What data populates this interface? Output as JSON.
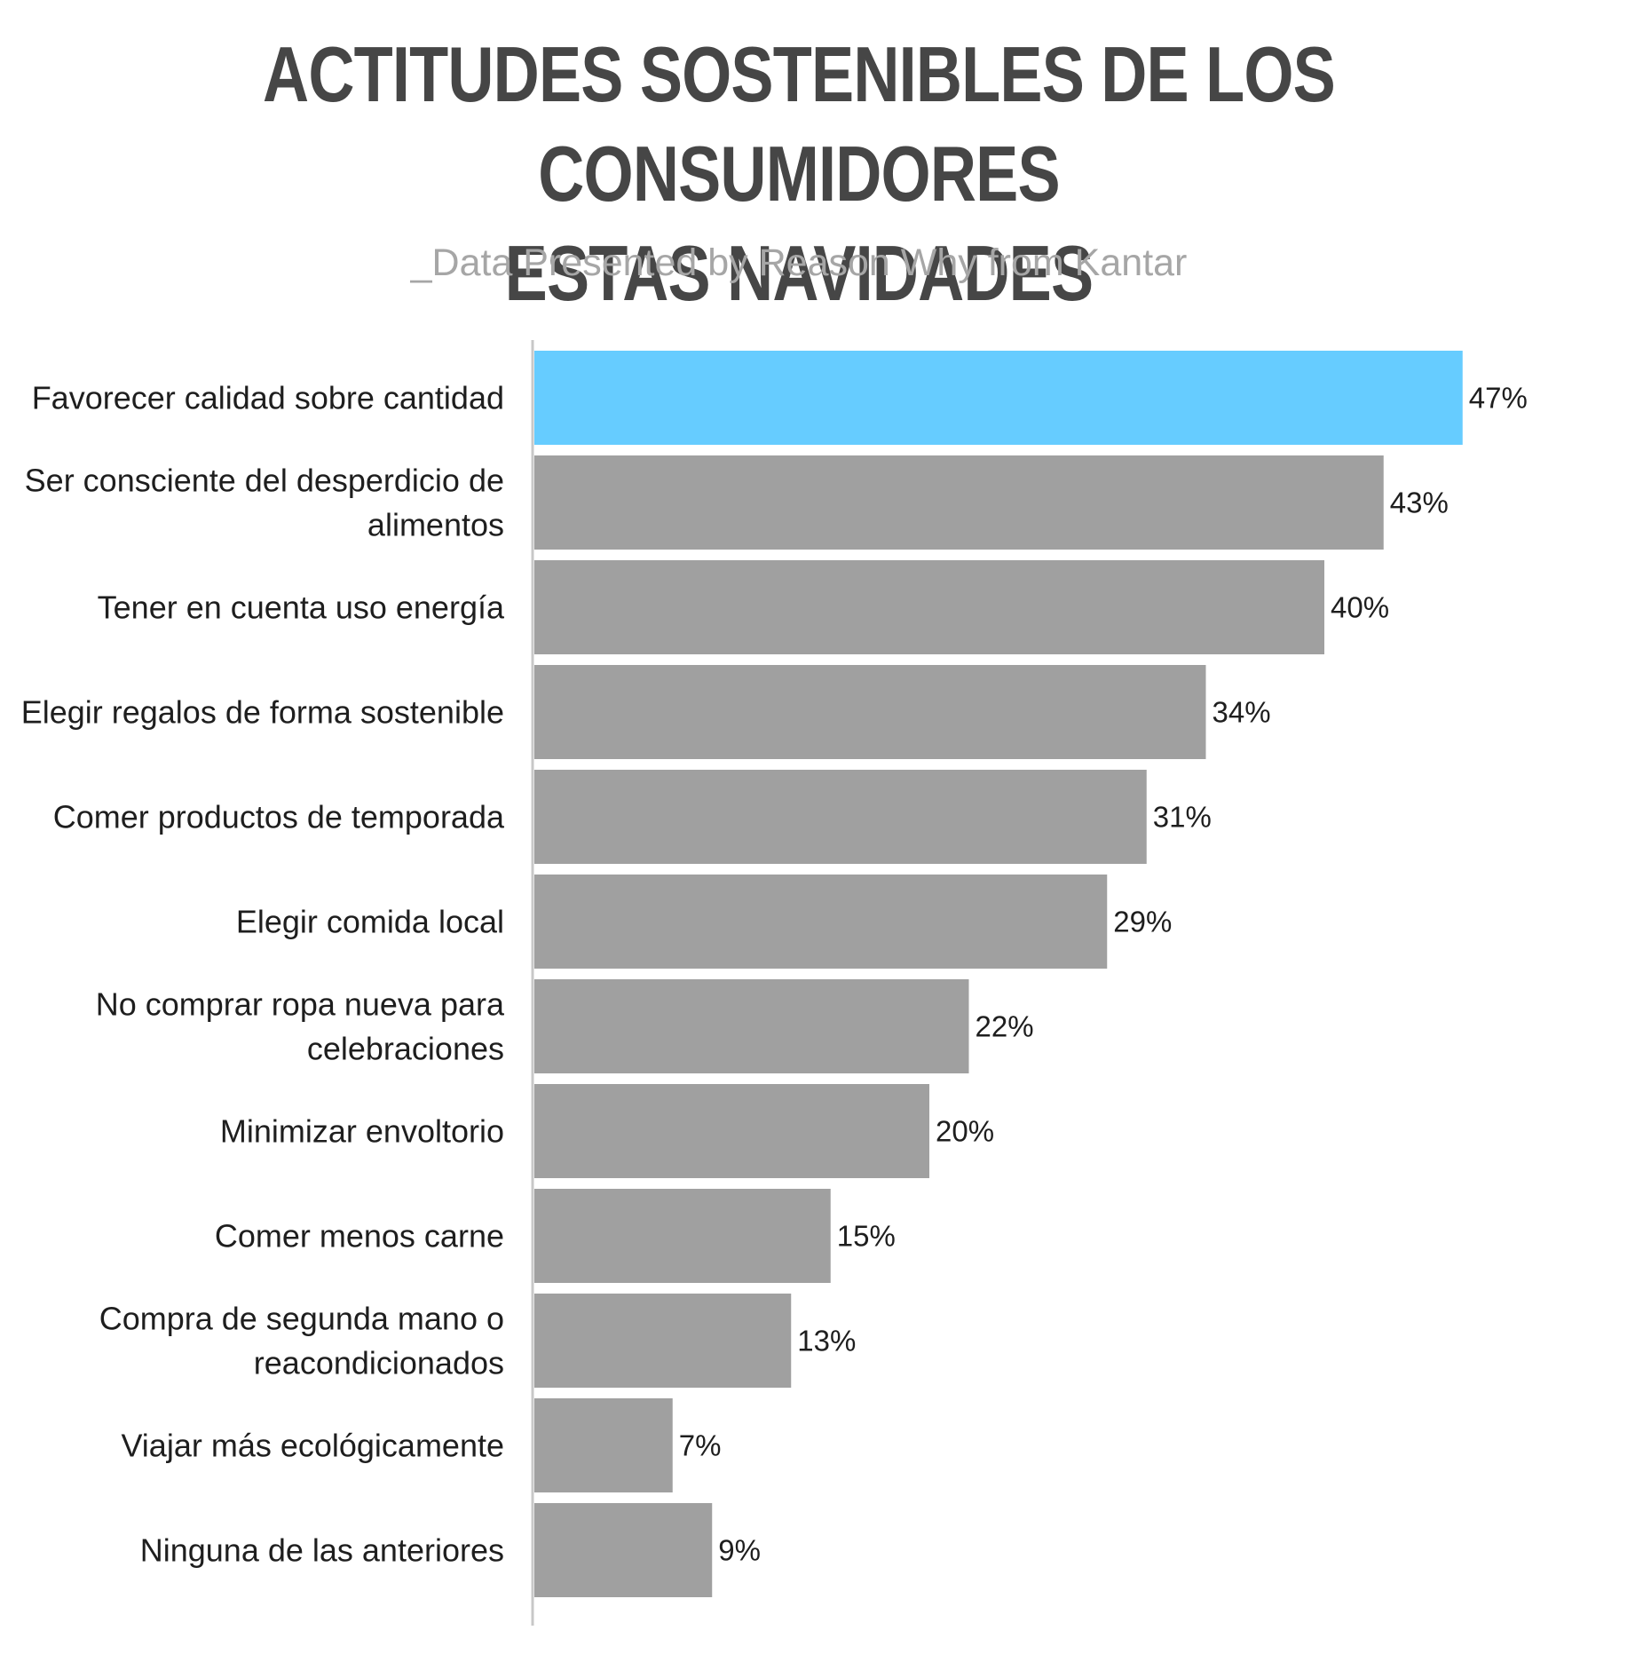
{
  "title_lines": [
    "ACTITUDES SOSTENIBLES DE LOS CONSUMIDORES",
    "ESTAS NAVIDADES"
  ],
  "subtitle": "_Data Presented by Reason Why from Kantar",
  "colors": {
    "highlight": "#66CCFF",
    "bar": "#A0A0A0",
    "axis": "#C8C8C8",
    "text": "#1E1E1E",
    "title": "#464646",
    "subtitle": "#A6A6A6"
  },
  "chart_data": {
    "type": "bar",
    "orientation": "horizontal",
    "title": "ACTITUDES SOSTENIBLES DE LOS CONSUMIDORES ESTAS NAVIDADES",
    "subtitle": "_Data Presented by Reason Why from Kantar",
    "xlabel": "",
    "ylabel": "",
    "unit": "%",
    "grid": false,
    "legend": "none",
    "highlight_index": 0,
    "categories": [
      [
        "Favorecer calidad sobre cantidad"
      ],
      [
        "Ser consciente del desperdicio de",
        "alimentos"
      ],
      [
        "Tener en cuenta uso energía"
      ],
      [
        "Elegir regalos de forma sostenible"
      ],
      [
        "Comer productos de temporada"
      ],
      [
        "Elegir comida local"
      ],
      [
        "No comprar ropa nueva para",
        "celebraciones"
      ],
      [
        "Minimizar envoltorio"
      ],
      [
        "Comer menos carne"
      ],
      [
        "Compra de segunda mano o",
        "reacondicionados"
      ],
      [
        "Viajar más ecológicamente"
      ],
      [
        "Ninguna de las anteriores"
      ]
    ],
    "values": [
      47,
      43,
      40,
      34,
      31,
      29,
      22,
      20,
      15,
      13,
      7,
      9
    ],
    "value_labels": [
      "47%",
      "43%",
      "40%",
      "34%",
      "31%",
      "29%",
      "22%",
      "20%",
      "15%",
      "13%",
      "7%",
      "9%"
    ]
  }
}
